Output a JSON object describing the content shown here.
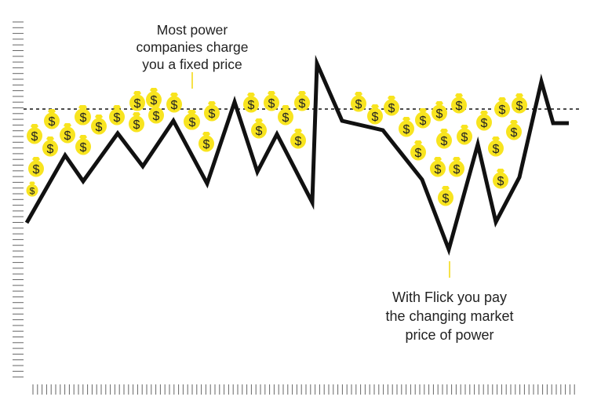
{
  "annotations": {
    "fixed_price": [
      "Most power",
      "companies charge",
      "you a fixed price"
    ],
    "market_price": [
      "With Flick you pay",
      "the changing market",
      "price of power"
    ]
  },
  "icons": {
    "money_bag": "money-bag-icon",
    "money_bag_symbol": "$"
  },
  "colors": {
    "money_bag": "#f8e41f",
    "money_bag_symbol": "#222222",
    "price_line": "#111111",
    "ticks": "#666666",
    "leader_line": "#f2d90b"
  },
  "diagram": {
    "fixed_price_line": "dashed",
    "market_price_line": "solid"
  }
}
